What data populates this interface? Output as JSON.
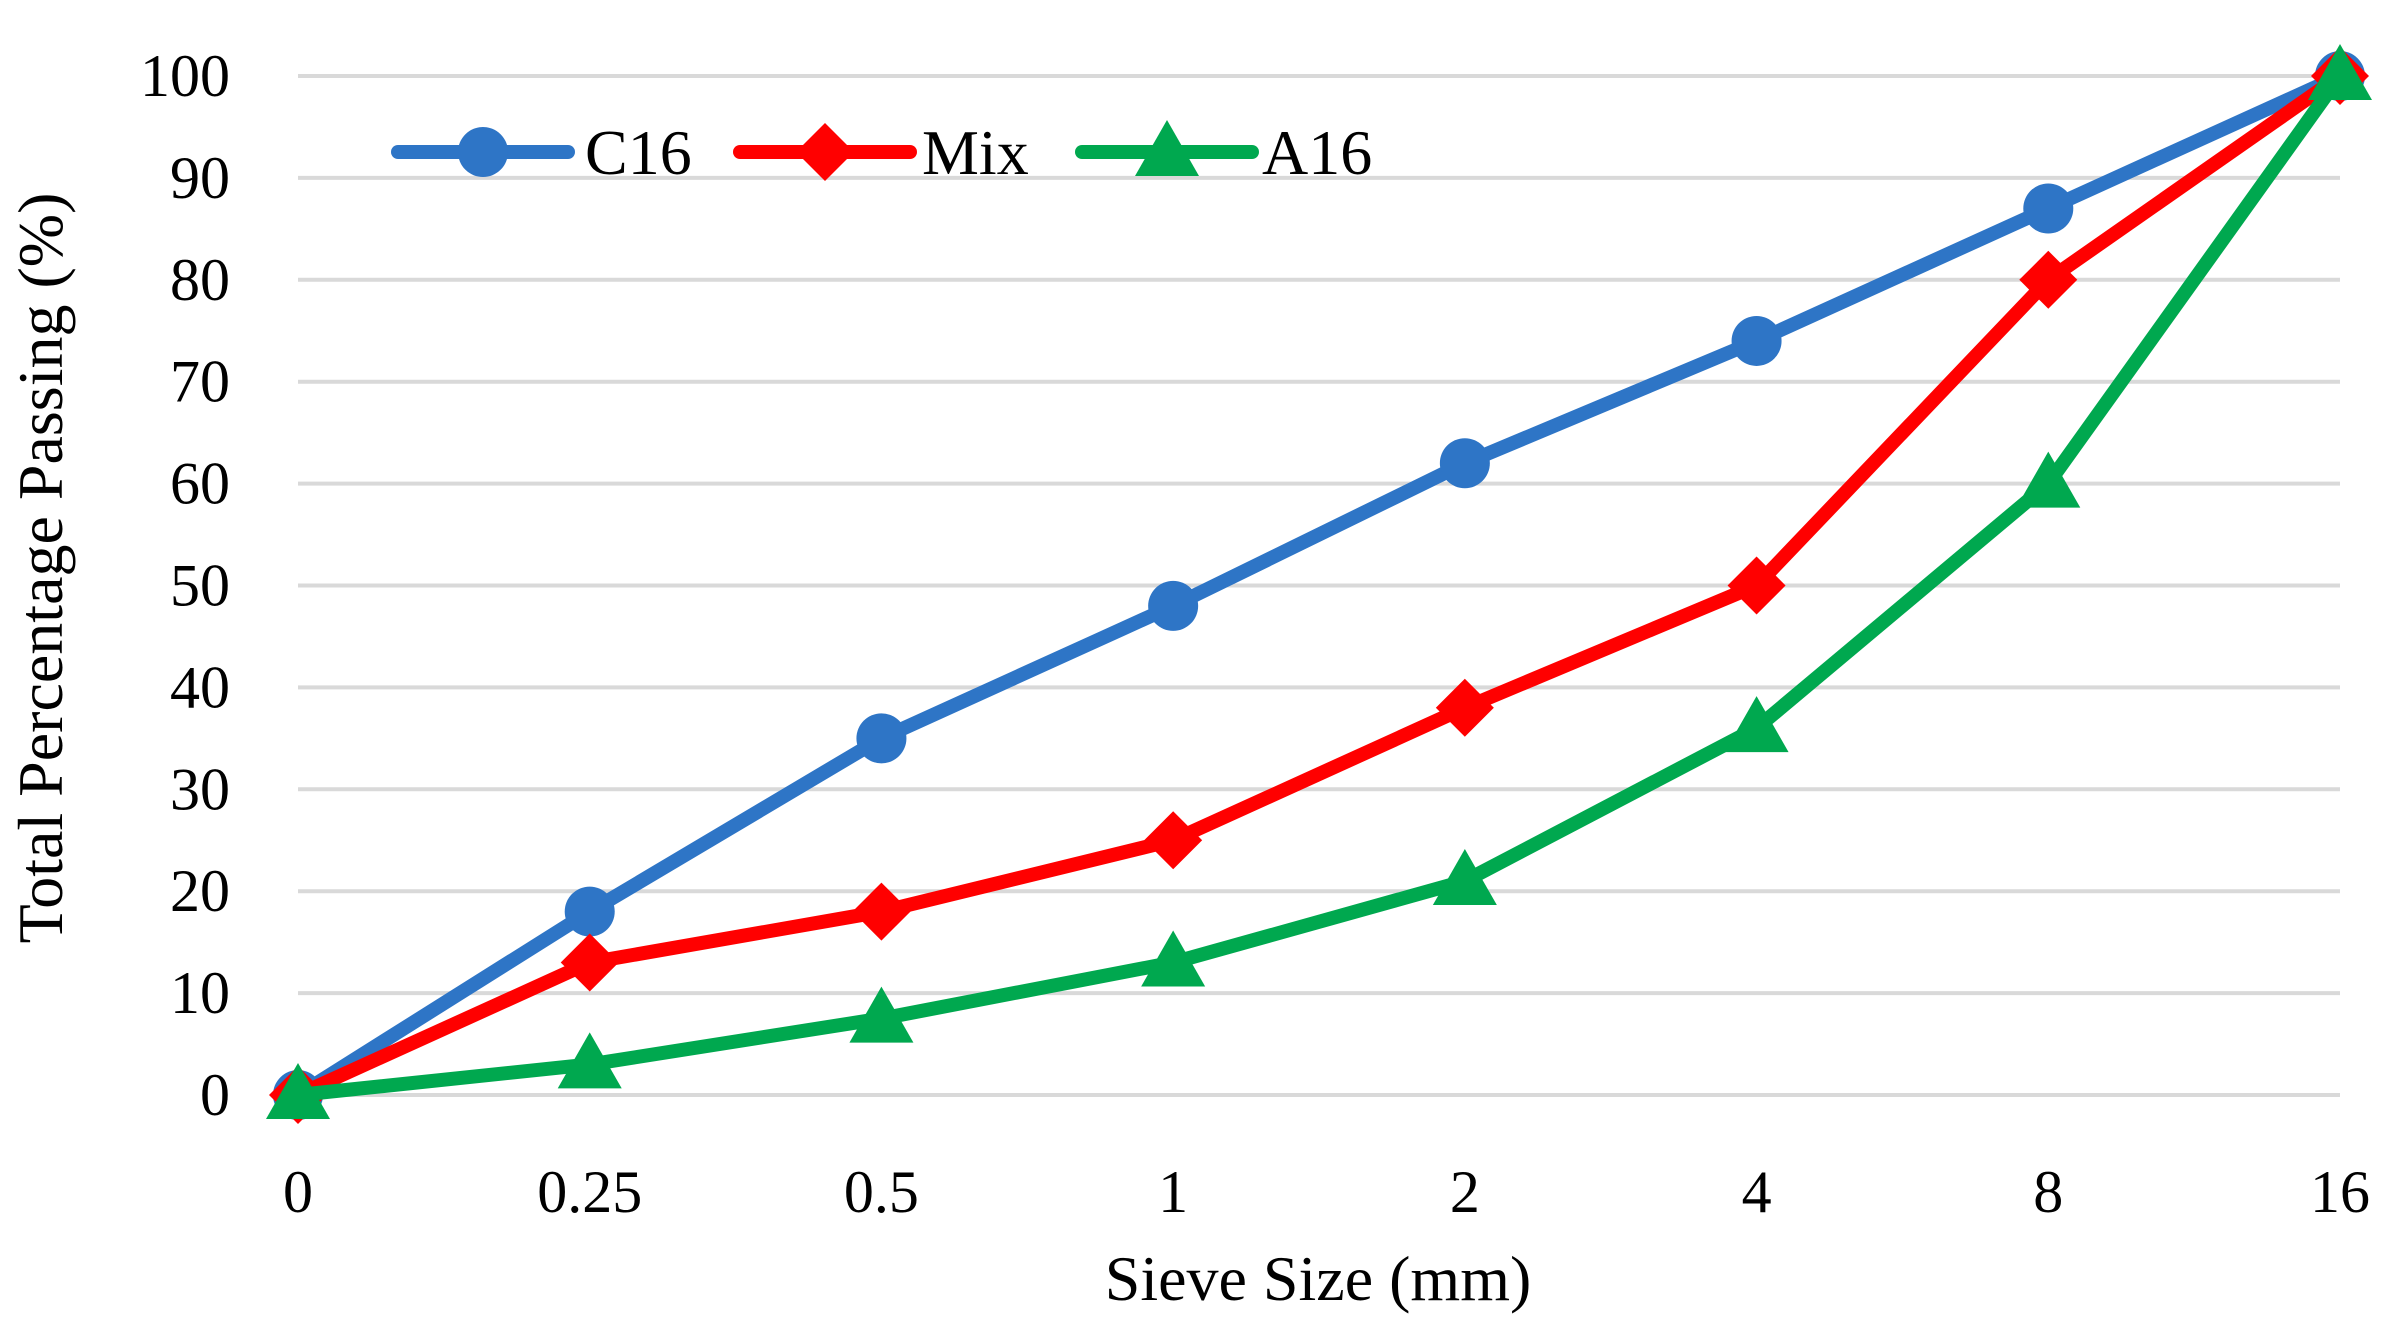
{
  "chart_data": {
    "type": "line",
    "title": "",
    "xlabel": "Sieve Size (mm)",
    "ylabel": "Total Percentage Passing (%)",
    "categories": [
      "0",
      "0.25",
      "0.5",
      "1",
      "2",
      "4",
      "8",
      "16"
    ],
    "ylim": [
      0,
      100
    ],
    "yticks": [
      "0",
      "10",
      "20",
      "30",
      "40",
      "50",
      "60",
      "70",
      "80",
      "90",
      "100"
    ],
    "grid": true,
    "legend_position": "top-left",
    "series": [
      {
        "name": "C16",
        "color": "#2e75c6",
        "marker": "circle",
        "values": [
          0,
          18,
          35,
          48,
          62,
          74,
          87,
          100
        ]
      },
      {
        "name": "Mix",
        "color": "#ff0000",
        "marker": "diamond",
        "values": [
          0,
          13,
          18,
          25,
          38,
          50,
          80,
          100
        ]
      },
      {
        "name": "A16",
        "color": "#00a84f",
        "marker": "triangle",
        "values": [
          0,
          3,
          7.5,
          13,
          21,
          36,
          60,
          100
        ]
      }
    ]
  }
}
